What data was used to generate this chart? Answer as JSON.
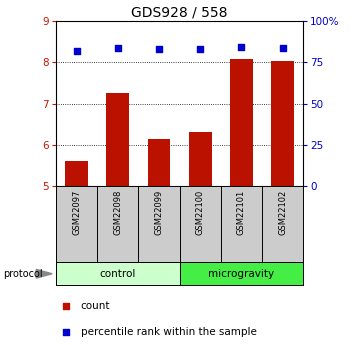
{
  "title": "GDS928 / 558",
  "samples": [
    "GSM22097",
    "GSM22098",
    "GSM22099",
    "GSM22100",
    "GSM22101",
    "GSM22102"
  ],
  "bar_values": [
    5.6,
    7.25,
    6.15,
    6.3,
    8.07,
    8.02
  ],
  "percentile_values": [
    82.0,
    83.5,
    83.0,
    83.0,
    84.0,
    83.5
  ],
  "bar_color": "#bb1100",
  "percentile_color": "#0000cc",
  "ylim_left": [
    5,
    9
  ],
  "ylim_right": [
    0,
    100
  ],
  "yticks_left": [
    5,
    6,
    7,
    8,
    9
  ],
  "yticks_right": [
    0,
    25,
    50,
    75,
    100
  ],
  "ytick_labels_right": [
    "0",
    "25",
    "50",
    "75",
    "100%"
  ],
  "groups": [
    {
      "label": "control",
      "samples": [
        0,
        1,
        2
      ],
      "color": "#ccffcc"
    },
    {
      "label": "microgravity",
      "samples": [
        3,
        4,
        5
      ],
      "color": "#44ee44"
    }
  ],
  "protocol_label": "protocol",
  "legend_count_label": "count",
  "legend_percentile_label": "percentile rank within the sample",
  "bar_width": 0.55,
  "background_color": "#ffffff",
  "plot_bg_color": "#ffffff",
  "tick_label_color_left": "#cc1100",
  "tick_label_color_right": "#0000cc",
  "grid_color": "#000000",
  "sample_bg_color": "#cccccc",
  "title_fontsize": 10,
  "axis_fontsize": 7.5
}
